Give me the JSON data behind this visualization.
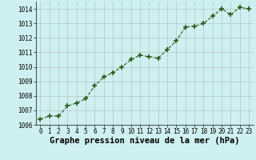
{
  "x": [
    0,
    1,
    2,
    3,
    4,
    5,
    6,
    7,
    8,
    9,
    10,
    11,
    12,
    13,
    14,
    15,
    16,
    17,
    18,
    19,
    20,
    21,
    22,
    23
  ],
  "y": [
    1006.4,
    1006.6,
    1006.6,
    1007.3,
    1007.5,
    1007.8,
    1008.7,
    1009.3,
    1009.6,
    1010.0,
    1010.5,
    1010.8,
    1010.7,
    1010.6,
    1011.2,
    1011.8,
    1012.75,
    1012.8,
    1013.0,
    1013.5,
    1014.0,
    1013.6,
    1014.1,
    1014.0
  ],
  "ylim": [
    1006,
    1014.5
  ],
  "yticks": [
    1006,
    1007,
    1008,
    1009,
    1010,
    1011,
    1012,
    1013,
    1014
  ],
  "xticks": [
    0,
    1,
    2,
    3,
    4,
    5,
    6,
    7,
    8,
    9,
    10,
    11,
    12,
    13,
    14,
    15,
    16,
    17,
    18,
    19,
    20,
    21,
    22,
    23
  ],
  "xlabel": "Graphe pression niveau de la mer (hPa)",
  "line_color": "#2d5a1b",
  "marker": "+",
  "marker_size": 5,
  "marker_linewidth": 1.2,
  "line_width": 0.8,
  "bg_color": "#cff0f0",
  "grid_color": "#b0c4c4",
  "tick_fontsize": 5.5,
  "xlabel_fontsize": 7.5
}
